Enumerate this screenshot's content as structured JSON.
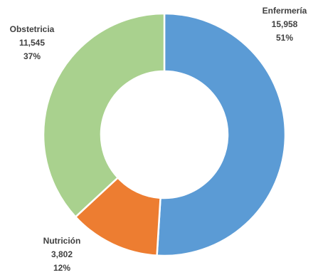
{
  "chart_data": {
    "type": "pie",
    "variant": "donut",
    "title": "",
    "categories": [
      "Enfermería",
      "Nutrición",
      "Obstetricia"
    ],
    "values": [
      15958,
      3802,
      11545
    ],
    "value_labels": [
      "15,958",
      "3,802",
      "11,545"
    ],
    "percent_labels": [
      "51%",
      "12%",
      "37%"
    ],
    "colors": [
      "#5b9bd5",
      "#ed7d31",
      "#a9d18e"
    ],
    "legend": "none",
    "start_angle_deg": 0,
    "direction": "clockwise"
  }
}
